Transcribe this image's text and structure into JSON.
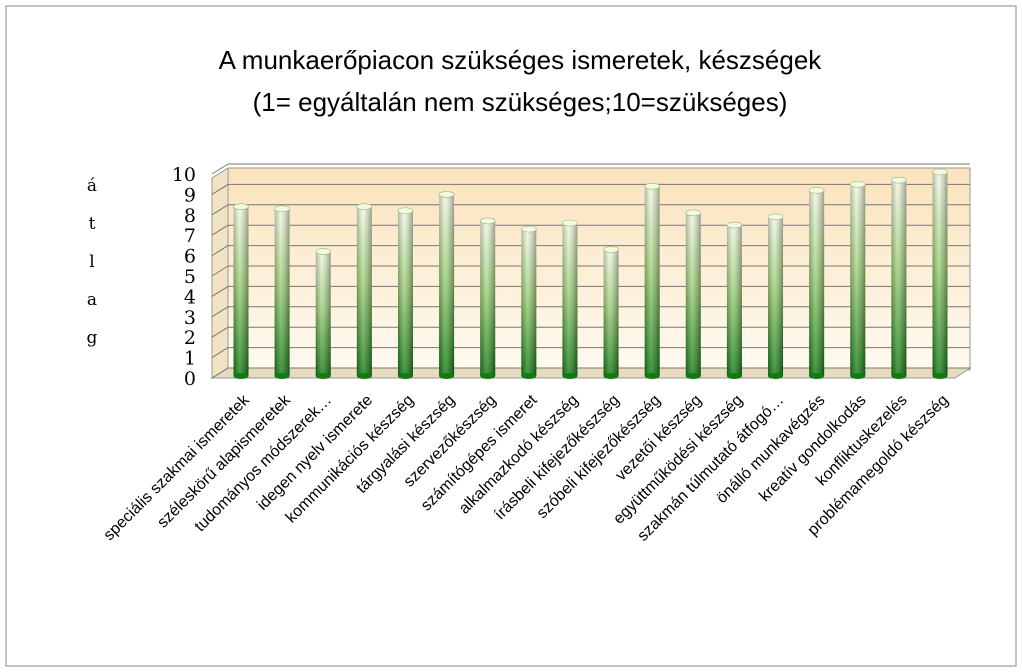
{
  "chart_data": {
    "type": "bar",
    "title": [
      "A munkaerőpiacon szükséges ismeretek, készségek",
      "(1= egyáltalán nem szükséges;10=szükséges)"
    ],
    "y_label": "átlag",
    "categories": [
      "speciális szakmai ismeretek",
      "széleskörű alapismeretek",
      "tudományos módszerek…",
      "idegen nyelv ismerete",
      "kommunikációs készség",
      "tárgyalási készség",
      "szervezőkészség",
      "számítógépes ismeret",
      "alkalmazkodó készség",
      "írásbeli kifejezőkészség",
      "szóbeli kifejezőkészség",
      "vezetői készség",
      "együttműködési készség",
      "szakmán túlmutató átfogó…",
      "önálló munkavégzés",
      "kreatív gondolkodás",
      "konfliktuskezelés",
      "problémamegoldó készség"
    ],
    "values": [
      8.3,
      8.2,
      6.1,
      8.3,
      8.1,
      8.9,
      7.6,
      7.2,
      7.5,
      6.2,
      9.3,
      8.0,
      7.4,
      7.8,
      9.1,
      9.4,
      9.6,
      10.0
    ],
    "color": "#2e8b2e",
    "ylim": [
      0,
      10
    ],
    "yticks": [
      0,
      1,
      2,
      3,
      4,
      5,
      6,
      7,
      8,
      9,
      10
    ],
    "grid": true
  }
}
